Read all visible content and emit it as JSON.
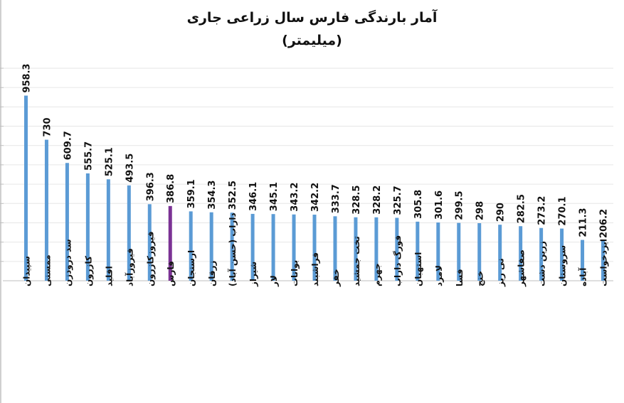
{
  "chart_data": {
    "type": "bar",
    "title": "آمار بارندگی فارس سال زراعی جاری",
    "subtitle": "(میلیمتر)",
    "xlabel": "",
    "ylabel": "",
    "ylim": [
      0,
      1100
    ],
    "grid": true,
    "legend": "none",
    "bar_color": "#5b9bd5",
    "highlight_color": "#7b3294",
    "highlight_category": "فارس",
    "categories": [
      "سپیدان",
      "ممسنی",
      "سد درودزن",
      "کازرون",
      "اقلید",
      "فیروزآباد",
      "فیروزکازرون",
      "فارس",
      "ارسنجان",
      "زرقان",
      "داراب (حسن آباد)",
      "شیراز",
      "لار",
      "بوانات",
      "فراشبند",
      "خفر",
      "تخت جمشید",
      "جهرم",
      "فورگ داراب",
      "استهبان",
      "لامرد",
      "فسا",
      "خنج",
      "نی ریز",
      "صفاشهر",
      "زرین دشت",
      "سروستان",
      "آباده",
      "ایزدخواست"
    ],
    "values": [
      958.3,
      730,
      609.7,
      555.7,
      525.1,
      493.5,
      396.3,
      386.8,
      359.1,
      354.3,
      352.5,
      346.1,
      345.1,
      343.2,
      342.2,
      333.7,
      328.5,
      328.2,
      325.7,
      305.8,
      301.6,
      299.5,
      298,
      290,
      282.5,
      273.2,
      270.1,
      211.3,
      206.2
    ],
    "value_labels": [
      "958.3",
      "730",
      "609.7",
      "555.7",
      "525.1",
      "493.5",
      "396.3",
      "386.8",
      "359.1",
      "354.3",
      "352.5",
      "346.1",
      "345.1",
      "343.2",
      "342.2",
      "333.7",
      "328.5",
      "328.2",
      "325.7",
      "305.8",
      "301.6",
      "299.5",
      "298",
      "290",
      "282.5",
      "273.2",
      "270.1",
      "211.3",
      "206.2"
    ]
  }
}
